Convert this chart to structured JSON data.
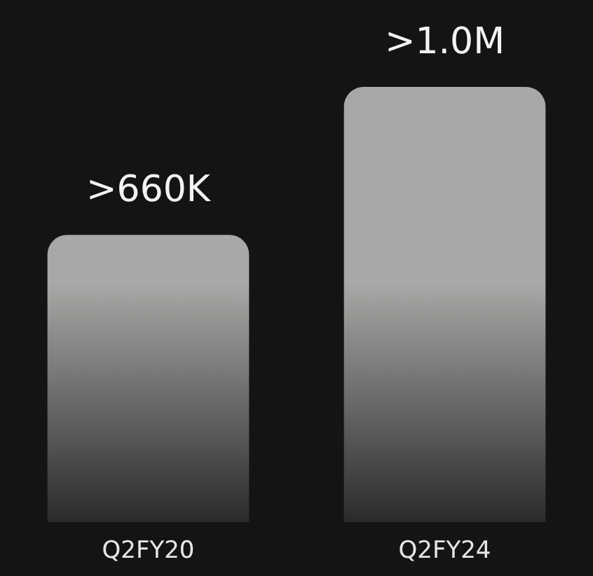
{
  "chart_data": {
    "type": "bar",
    "categories": [
      "Q2FY20",
      "Q2FY24"
    ],
    "values": [
      660000,
      1000000
    ],
    "value_labels": [
      ">660K",
      ">1.0M"
    ],
    "color": "#a9a8a6"
  }
}
